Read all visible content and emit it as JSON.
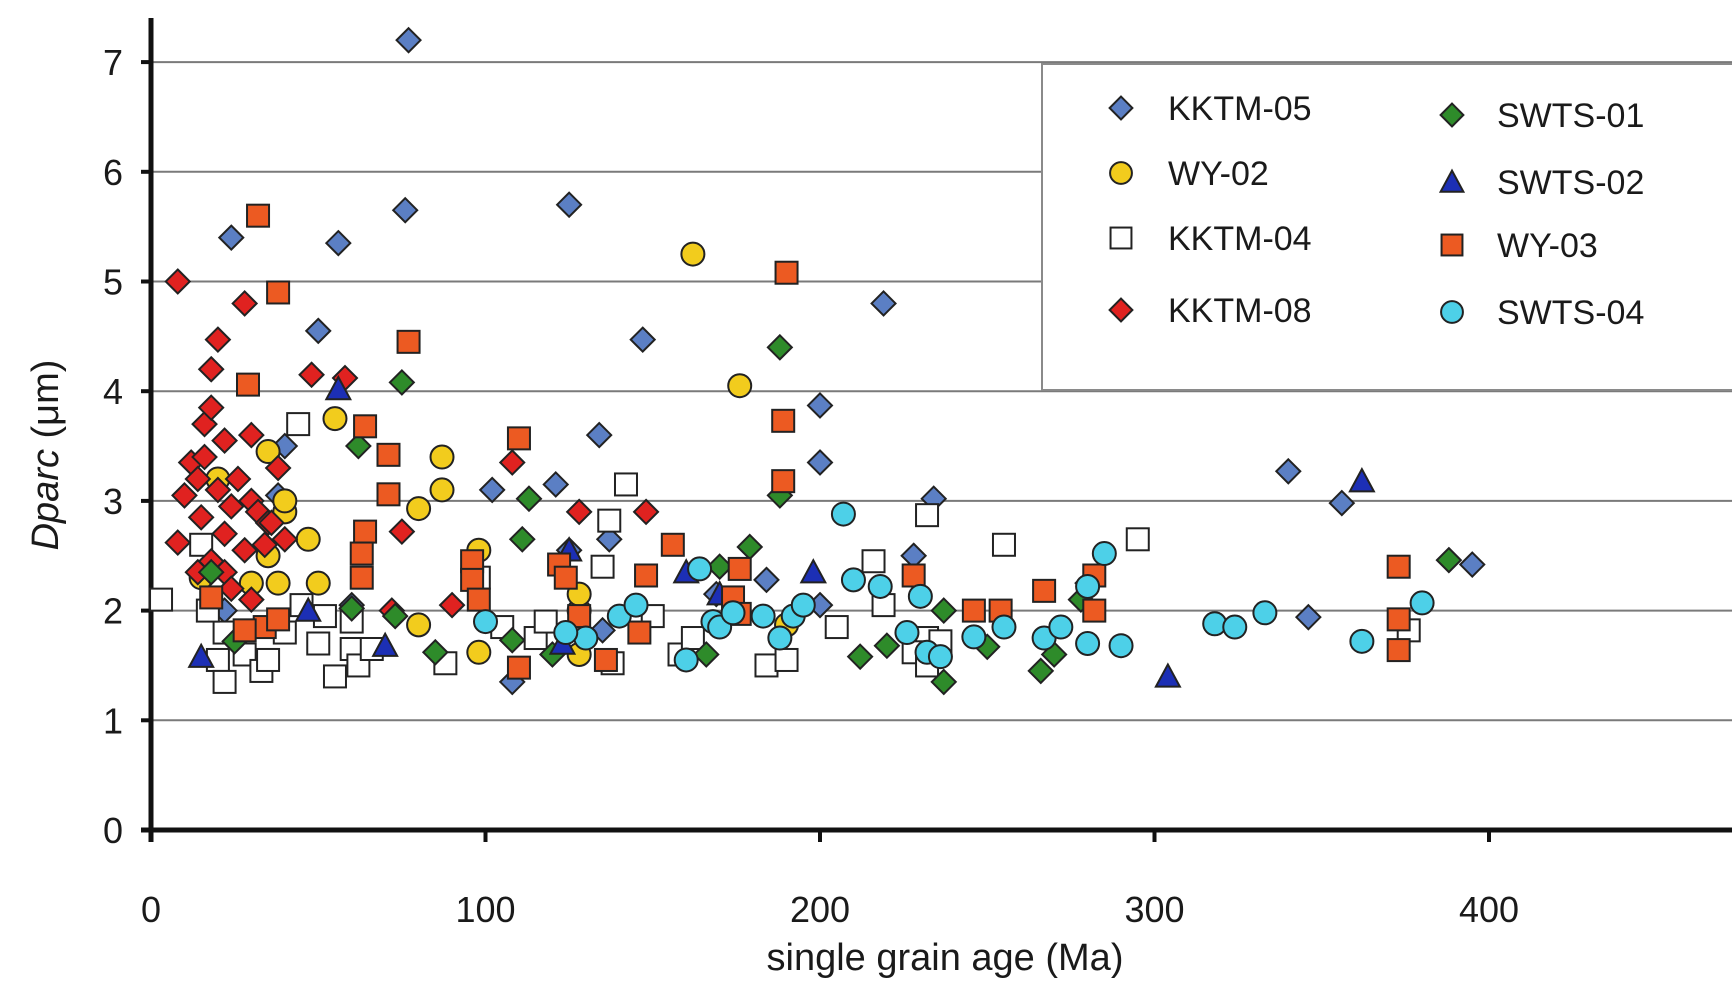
{
  "chart_data": {
    "type": "scatter",
    "xlabel": "single grain age (Ma)",
    "ylabel_main": "Dparc",
    "ylabel_unit": " (μm)",
    "xlim": [
      0,
      475
    ],
    "ylim": [
      0,
      7.4
    ],
    "x_ticks": [
      0,
      100,
      200,
      300,
      400
    ],
    "y_ticks": [
      0,
      1,
      2,
      3,
      4,
      5,
      6,
      7
    ],
    "grid": "horizontal",
    "legend_position": "top-right",
    "series": [
      {
        "name": "KKTM-05",
        "marker": "diamond",
        "color": "#5b7fc4",
        "points": [
          [
            77,
            7.2
          ],
          [
            24,
            5.4
          ],
          [
            56,
            5.35
          ],
          [
            76,
            5.65
          ],
          [
            125,
            5.7
          ],
          [
            50,
            4.55
          ],
          [
            147,
            4.47
          ],
          [
            219,
            4.8
          ],
          [
            40,
            3.5
          ],
          [
            38,
            3.05
          ],
          [
            102,
            3.1
          ],
          [
            121,
            3.15
          ],
          [
            134,
            3.6
          ],
          [
            200,
            3.87
          ],
          [
            200,
            3.35
          ],
          [
            234,
            3.02
          ],
          [
            340,
            3.27
          ],
          [
            356,
            2.98
          ],
          [
            395,
            2.42
          ],
          [
            346,
            1.94
          ],
          [
            228,
            2.5
          ],
          [
            184,
            2.28
          ],
          [
            125,
            2.55
          ],
          [
            137,
            2.65
          ],
          [
            135,
            1.82
          ],
          [
            200,
            2.05
          ],
          [
            108,
            1.35
          ],
          [
            60,
            2.05
          ],
          [
            169,
            2.15
          ],
          [
            22,
            2.0
          ]
        ]
      },
      {
        "name": "WY-02",
        "marker": "circle",
        "color": "#f2cc1d",
        "points": [
          [
            162,
            5.25
          ],
          [
            176,
            4.05
          ],
          [
            55,
            3.75
          ],
          [
            35,
            3.45
          ],
          [
            87,
            3.4
          ],
          [
            87,
            3.1
          ],
          [
            40,
            2.9
          ],
          [
            80,
            2.93
          ],
          [
            20,
            3.2
          ],
          [
            40,
            3.0
          ],
          [
            47,
            2.65
          ],
          [
            30,
            2.25
          ],
          [
            38,
            2.25
          ],
          [
            50,
            2.25
          ],
          [
            35,
            2.5
          ],
          [
            98,
            2.55
          ],
          [
            128,
            2.0
          ],
          [
            128,
            2.15
          ],
          [
            128,
            1.6
          ],
          [
            98,
            1.62
          ],
          [
            190,
            1.87
          ],
          [
            80,
            1.87
          ],
          [
            15,
            2.3
          ]
        ]
      },
      {
        "name": "KKTM-04",
        "marker": "square-hollow",
        "color": "#ffffff",
        "points": [
          [
            3,
            2.1
          ],
          [
            44,
            3.7
          ],
          [
            142,
            3.15
          ],
          [
            137,
            2.82
          ],
          [
            232,
            2.87
          ],
          [
            255,
            2.6
          ],
          [
            295,
            2.65
          ],
          [
            216,
            2.45
          ],
          [
            219,
            2.05
          ],
          [
            205,
            1.85
          ],
          [
            232,
            1.75
          ],
          [
            15,
            2.6
          ],
          [
            22,
            1.8
          ],
          [
            20,
            1.55
          ],
          [
            22,
            1.35
          ],
          [
            28,
            1.6
          ],
          [
            33,
            1.45
          ],
          [
            35,
            1.55
          ],
          [
            40,
            1.8
          ],
          [
            50,
            1.7
          ],
          [
            52,
            1.95
          ],
          [
            55,
            1.4
          ],
          [
            60,
            1.65
          ],
          [
            62,
            1.5
          ],
          [
            66,
            1.65
          ],
          [
            88,
            1.52
          ],
          [
            98,
            2.3
          ],
          [
            105,
            1.85
          ],
          [
            115,
            1.75
          ],
          [
            118,
            1.9
          ],
          [
            135,
            2.4
          ],
          [
            138,
            1.52
          ],
          [
            150,
            1.95
          ],
          [
            158,
            1.6
          ],
          [
            162,
            1.75
          ],
          [
            184,
            1.5
          ],
          [
            190,
            1.55
          ],
          [
            228,
            1.62
          ],
          [
            232,
            1.5
          ],
          [
            236,
            1.72
          ],
          [
            376,
            1.82
          ],
          [
            17,
            2.0
          ],
          [
            45,
            2.05
          ],
          [
            60,
            1.9
          ]
        ]
      },
      {
        "name": "KKTM-08",
        "marker": "diamond",
        "color": "#e02220",
        "points": [
          [
            8,
            5.0
          ],
          [
            18,
            4.2
          ],
          [
            20,
            4.47
          ],
          [
            28,
            4.8
          ],
          [
            16,
            3.7
          ],
          [
            18,
            3.85
          ],
          [
            22,
            3.55
          ],
          [
            30,
            3.6
          ],
          [
            12,
            3.35
          ],
          [
            14,
            3.2
          ],
          [
            10,
            3.05
          ],
          [
            20,
            3.1
          ],
          [
            26,
            3.2
          ],
          [
            30,
            3.0
          ],
          [
            32,
            2.9
          ],
          [
            35,
            2.8
          ],
          [
            15,
            2.85
          ],
          [
            22,
            2.7
          ],
          [
            28,
            2.55
          ],
          [
            8,
            2.62
          ],
          [
            14,
            2.35
          ],
          [
            18,
            2.45
          ],
          [
            22,
            2.35
          ],
          [
            24,
            2.2
          ],
          [
            30,
            2.1
          ],
          [
            36,
            2.8
          ],
          [
            40,
            2.65
          ],
          [
            48,
            4.15
          ],
          [
            58,
            4.12
          ],
          [
            75,
            2.72
          ],
          [
            108,
            3.35
          ],
          [
            128,
            2.9
          ],
          [
            148,
            2.9
          ],
          [
            90,
            2.05
          ],
          [
            72,
            2.0
          ],
          [
            280,
            2.25
          ],
          [
            38,
            3.3
          ],
          [
            24,
            2.95
          ],
          [
            16,
            3.4
          ],
          [
            34,
            2.6
          ]
        ]
      },
      {
        "name": "SWTS-01",
        "marker": "diamond",
        "color": "#2e8b2a",
        "points": [
          [
            188,
            4.4
          ],
          [
            75,
            4.08
          ],
          [
            62,
            3.5
          ],
          [
            113,
            3.02
          ],
          [
            111,
            2.65
          ],
          [
            179,
            2.58
          ],
          [
            188,
            3.05
          ],
          [
            170,
            2.4
          ],
          [
            237,
            2.0
          ],
          [
            278,
            2.1
          ],
          [
            388,
            2.46
          ],
          [
            108,
            1.73
          ],
          [
            85,
            1.62
          ],
          [
            120,
            1.6
          ],
          [
            166,
            1.6
          ],
          [
            212,
            1.58
          ],
          [
            220,
            1.68
          ],
          [
            237,
            1.35
          ],
          [
            250,
            1.67
          ],
          [
            266,
            1.45
          ],
          [
            270,
            1.6
          ],
          [
            60,
            2.02
          ],
          [
            73,
            1.95
          ],
          [
            18,
            2.35
          ],
          [
            25,
            1.72
          ]
        ]
      },
      {
        "name": "SWTS-02",
        "marker": "triangle",
        "color": "#1c2fb5",
        "points": [
          [
            56,
            4.02
          ],
          [
            362,
            3.18
          ],
          [
            198,
            2.35
          ],
          [
            160,
            2.35
          ],
          [
            170,
            2.15
          ],
          [
            125,
            2.55
          ],
          [
            47,
            2.0
          ],
          [
            70,
            1.68
          ],
          [
            123,
            1.7
          ],
          [
            15,
            1.58
          ],
          [
            304,
            1.4
          ]
        ]
      },
      {
        "name": "WY-03",
        "marker": "square",
        "color": "#ec5a22",
        "points": [
          [
            32,
            5.6
          ],
          [
            38,
            4.9
          ],
          [
            190,
            5.08
          ],
          [
            77,
            4.45
          ],
          [
            29,
            4.06
          ],
          [
            64,
            3.68
          ],
          [
            110,
            3.57
          ],
          [
            71,
            3.42
          ],
          [
            71,
            3.06
          ],
          [
            189,
            3.73
          ],
          [
            189,
            3.18
          ],
          [
            64,
            2.72
          ],
          [
            63,
            2.52
          ],
          [
            63,
            2.3
          ],
          [
            96,
            2.45
          ],
          [
            96,
            2.28
          ],
          [
            98,
            2.1
          ],
          [
            122,
            2.42
          ],
          [
            124,
            2.3
          ],
          [
            128,
            1.95
          ],
          [
            148,
            2.32
          ],
          [
            156,
            2.6
          ],
          [
            174,
            2.12
          ],
          [
            176,
            1.97
          ],
          [
            176,
            2.38
          ],
          [
            228,
            2.32
          ],
          [
            246,
            2.0
          ],
          [
            254,
            2.0
          ],
          [
            267,
            2.18
          ],
          [
            282,
            2.0
          ],
          [
            282,
            2.32
          ],
          [
            373,
            2.4
          ],
          [
            373,
            1.92
          ],
          [
            373,
            1.64
          ],
          [
            18,
            2.12
          ],
          [
            34,
            1.85
          ],
          [
            110,
            1.48
          ],
          [
            136,
            1.55
          ],
          [
            146,
            1.8
          ],
          [
            28,
            1.82
          ],
          [
            38,
            1.92
          ]
        ]
      },
      {
        "name": "SWTS-04",
        "marker": "circle",
        "color": "#4dd0e8",
        "points": [
          [
            207,
            2.88
          ],
          [
            210,
            2.28
          ],
          [
            218,
            2.22
          ],
          [
            230,
            2.13
          ],
          [
            280,
            2.22
          ],
          [
            285,
            2.52
          ],
          [
            246,
            1.76
          ],
          [
            255,
            1.85
          ],
          [
            267,
            1.75
          ],
          [
            272,
            1.85
          ],
          [
            280,
            1.7
          ],
          [
            290,
            1.68
          ],
          [
            318,
            1.88
          ],
          [
            324,
            1.85
          ],
          [
            333,
            1.98
          ],
          [
            362,
            1.72
          ],
          [
            380,
            2.07
          ],
          [
            164,
            2.38
          ],
          [
            168,
            1.9
          ],
          [
            170,
            1.85
          ],
          [
            174,
            1.98
          ],
          [
            160,
            1.55
          ],
          [
            183,
            1.95
          ],
          [
            188,
            1.75
          ],
          [
            192,
            1.95
          ],
          [
            195,
            2.05
          ],
          [
            226,
            1.8
          ],
          [
            232,
            1.62
          ],
          [
            236,
            1.58
          ],
          [
            130,
            1.75
          ],
          [
            140,
            1.95
          ],
          [
            145,
            2.05
          ],
          [
            100,
            1.9
          ],
          [
            124,
            1.8
          ]
        ]
      }
    ]
  }
}
